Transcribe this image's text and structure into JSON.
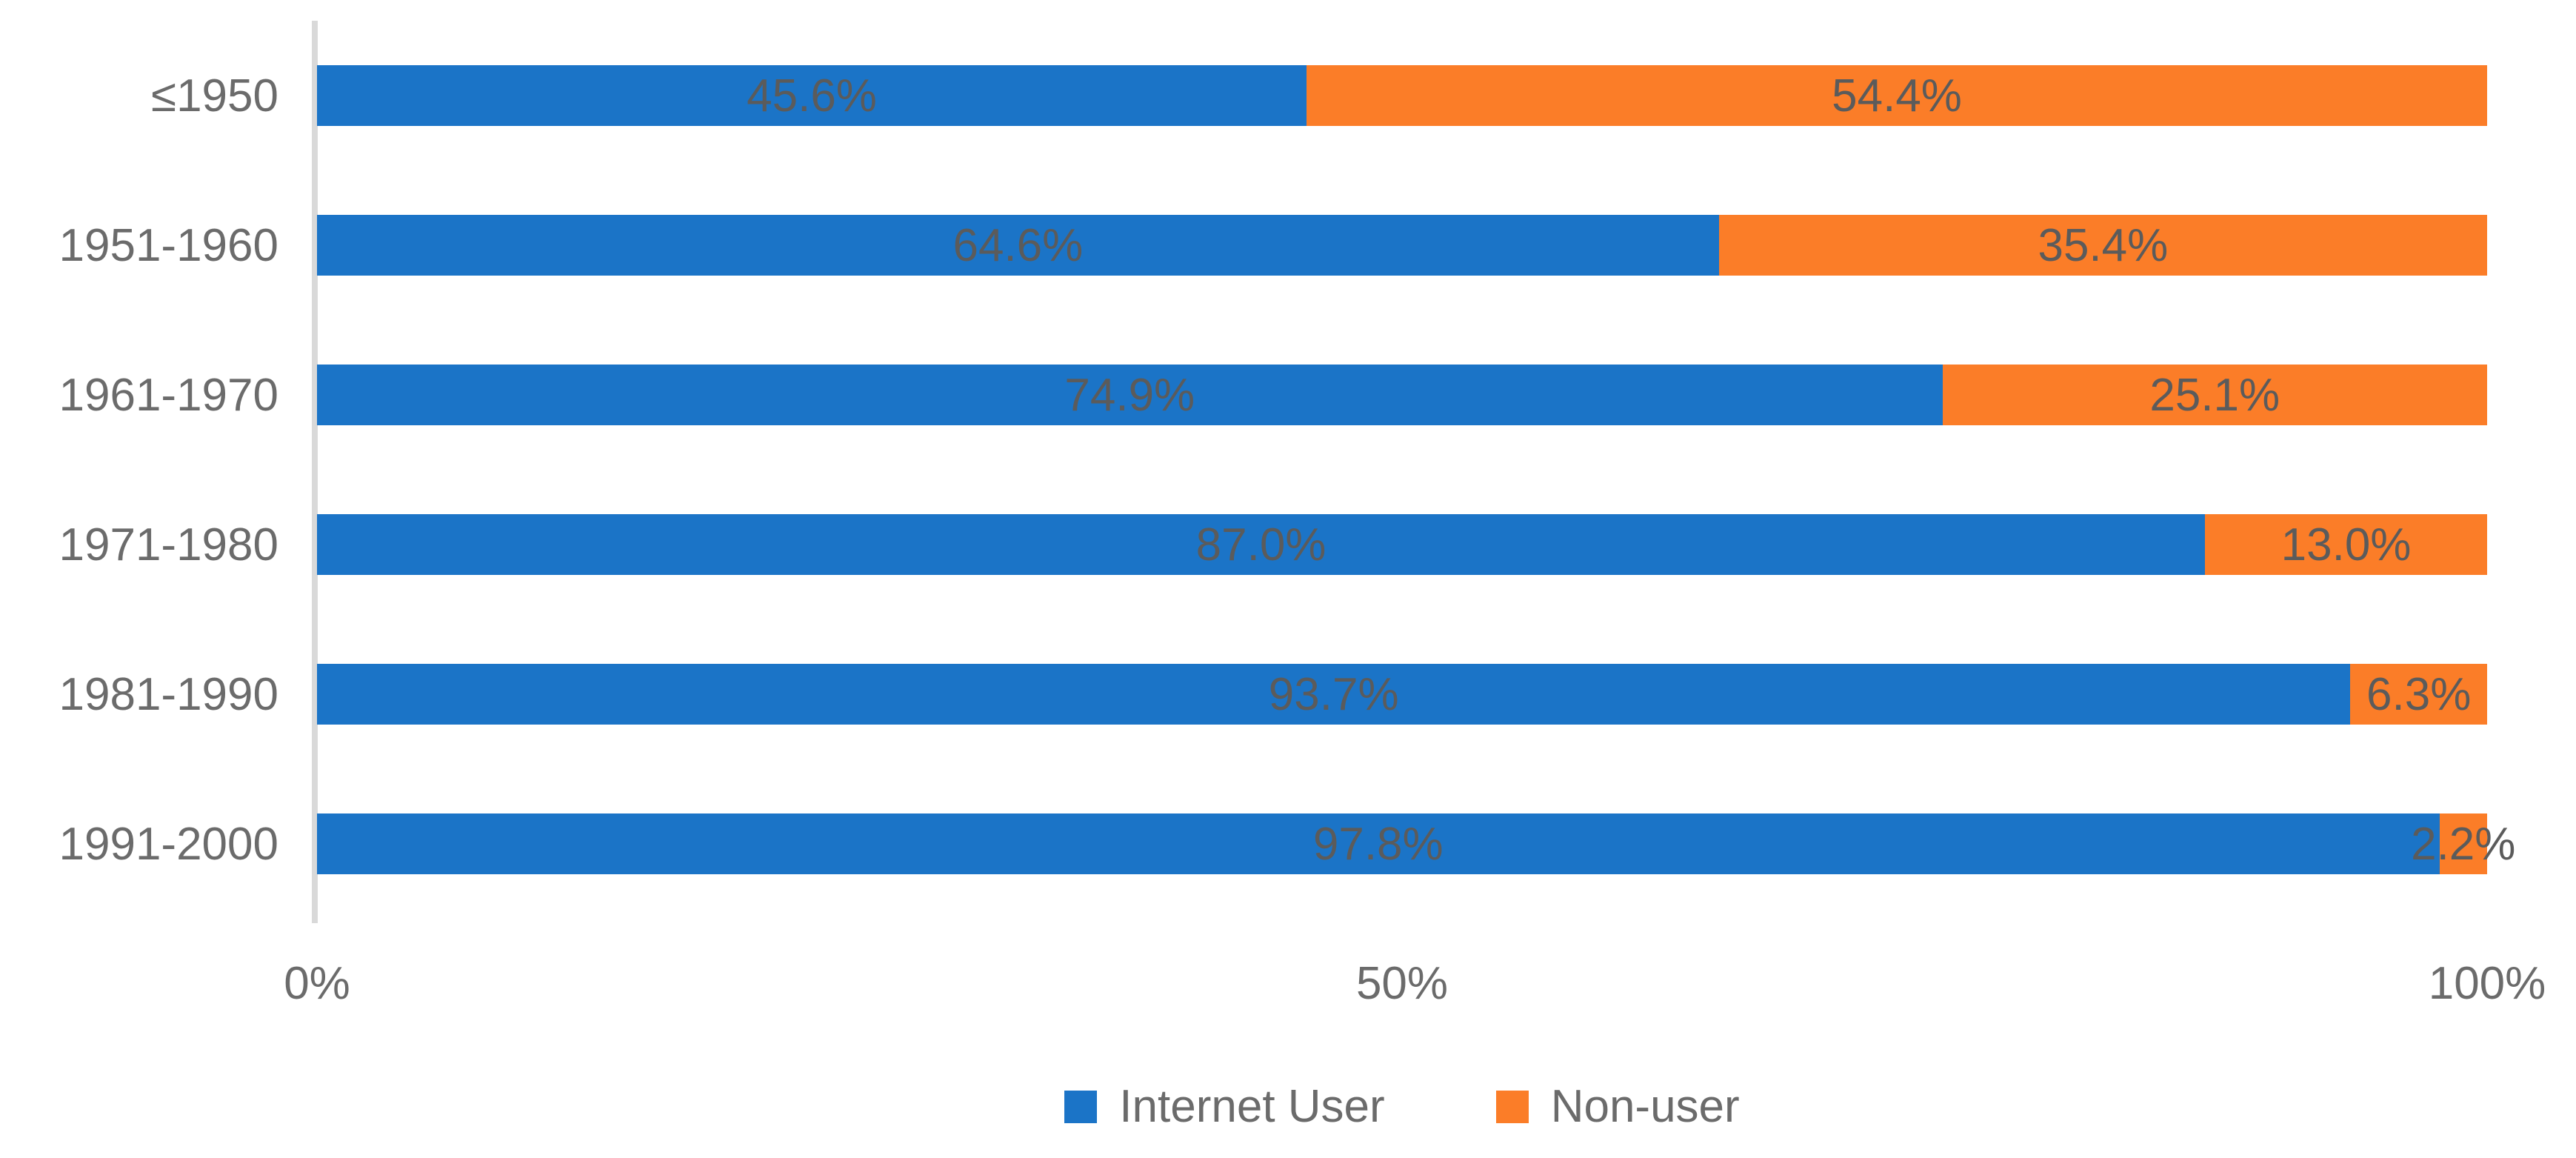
{
  "chart_data": {
    "type": "bar",
    "orientation": "horizontal",
    "stacked": true,
    "unit": "percent",
    "categories": [
      "≤1950",
      "1951-1960",
      "1961-1970",
      "1971-1980",
      "1981-1990",
      "1991-2000"
    ],
    "series": [
      {
        "name": "Internet User",
        "color": "#1B74C7",
        "values": [
          45.6,
          64.6,
          74.9,
          87.0,
          93.7,
          97.8
        ],
        "labels": [
          "45.6%",
          "64.6%",
          "74.9%",
          "87.0%",
          "93.7%",
          "97.8%"
        ]
      },
      {
        "name": "Non-user",
        "color": "#FB7D28",
        "values": [
          54.4,
          35.4,
          25.1,
          13.0,
          6.3,
          2.2
        ],
        "labels": [
          "54.4%",
          "35.4%",
          "25.1%",
          "13.0%",
          "6.3%",
          "2.2%"
        ]
      }
    ],
    "x_axis": {
      "ticks": [
        "0%",
        "50%",
        "100%"
      ],
      "range": [
        0,
        100
      ]
    },
    "legend": {
      "position": "bottom",
      "entries": [
        "Internet User",
        "Non-user"
      ]
    },
    "gridlines": false,
    "title": ""
  },
  "style": {
    "background": "#FFFFFF",
    "axis_line_color": "#D9D9D9",
    "axis_text_color": "#6B6B6B",
    "data_label_color": "#5B5B5B"
  }
}
